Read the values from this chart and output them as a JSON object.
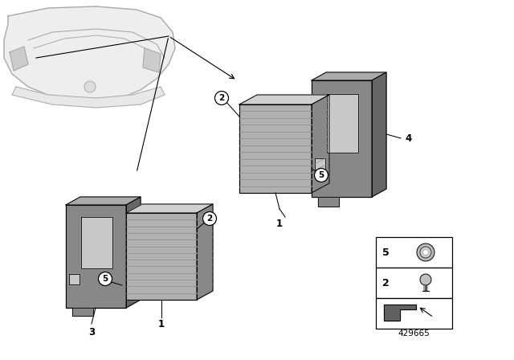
{
  "background_color": "#ffffff",
  "line_color": "#000000",
  "diagram_number": "429665",
  "car_body_color": "#e0e0e0",
  "car_line_color": "#999999",
  "module_front_color": "#b0b0b0",
  "module_top_color": "#d0d0d0",
  "module_side_color": "#888888",
  "module_rib_color": "#909090",
  "bracket_front_color": "#888888",
  "bracket_top_color": "#aaaaaa",
  "bracket_side_color": "#666666",
  "bracket_hole_color": "#cccccc",
  "legend_box_color": "#ffffff",
  "legend_border_color": "#000000"
}
